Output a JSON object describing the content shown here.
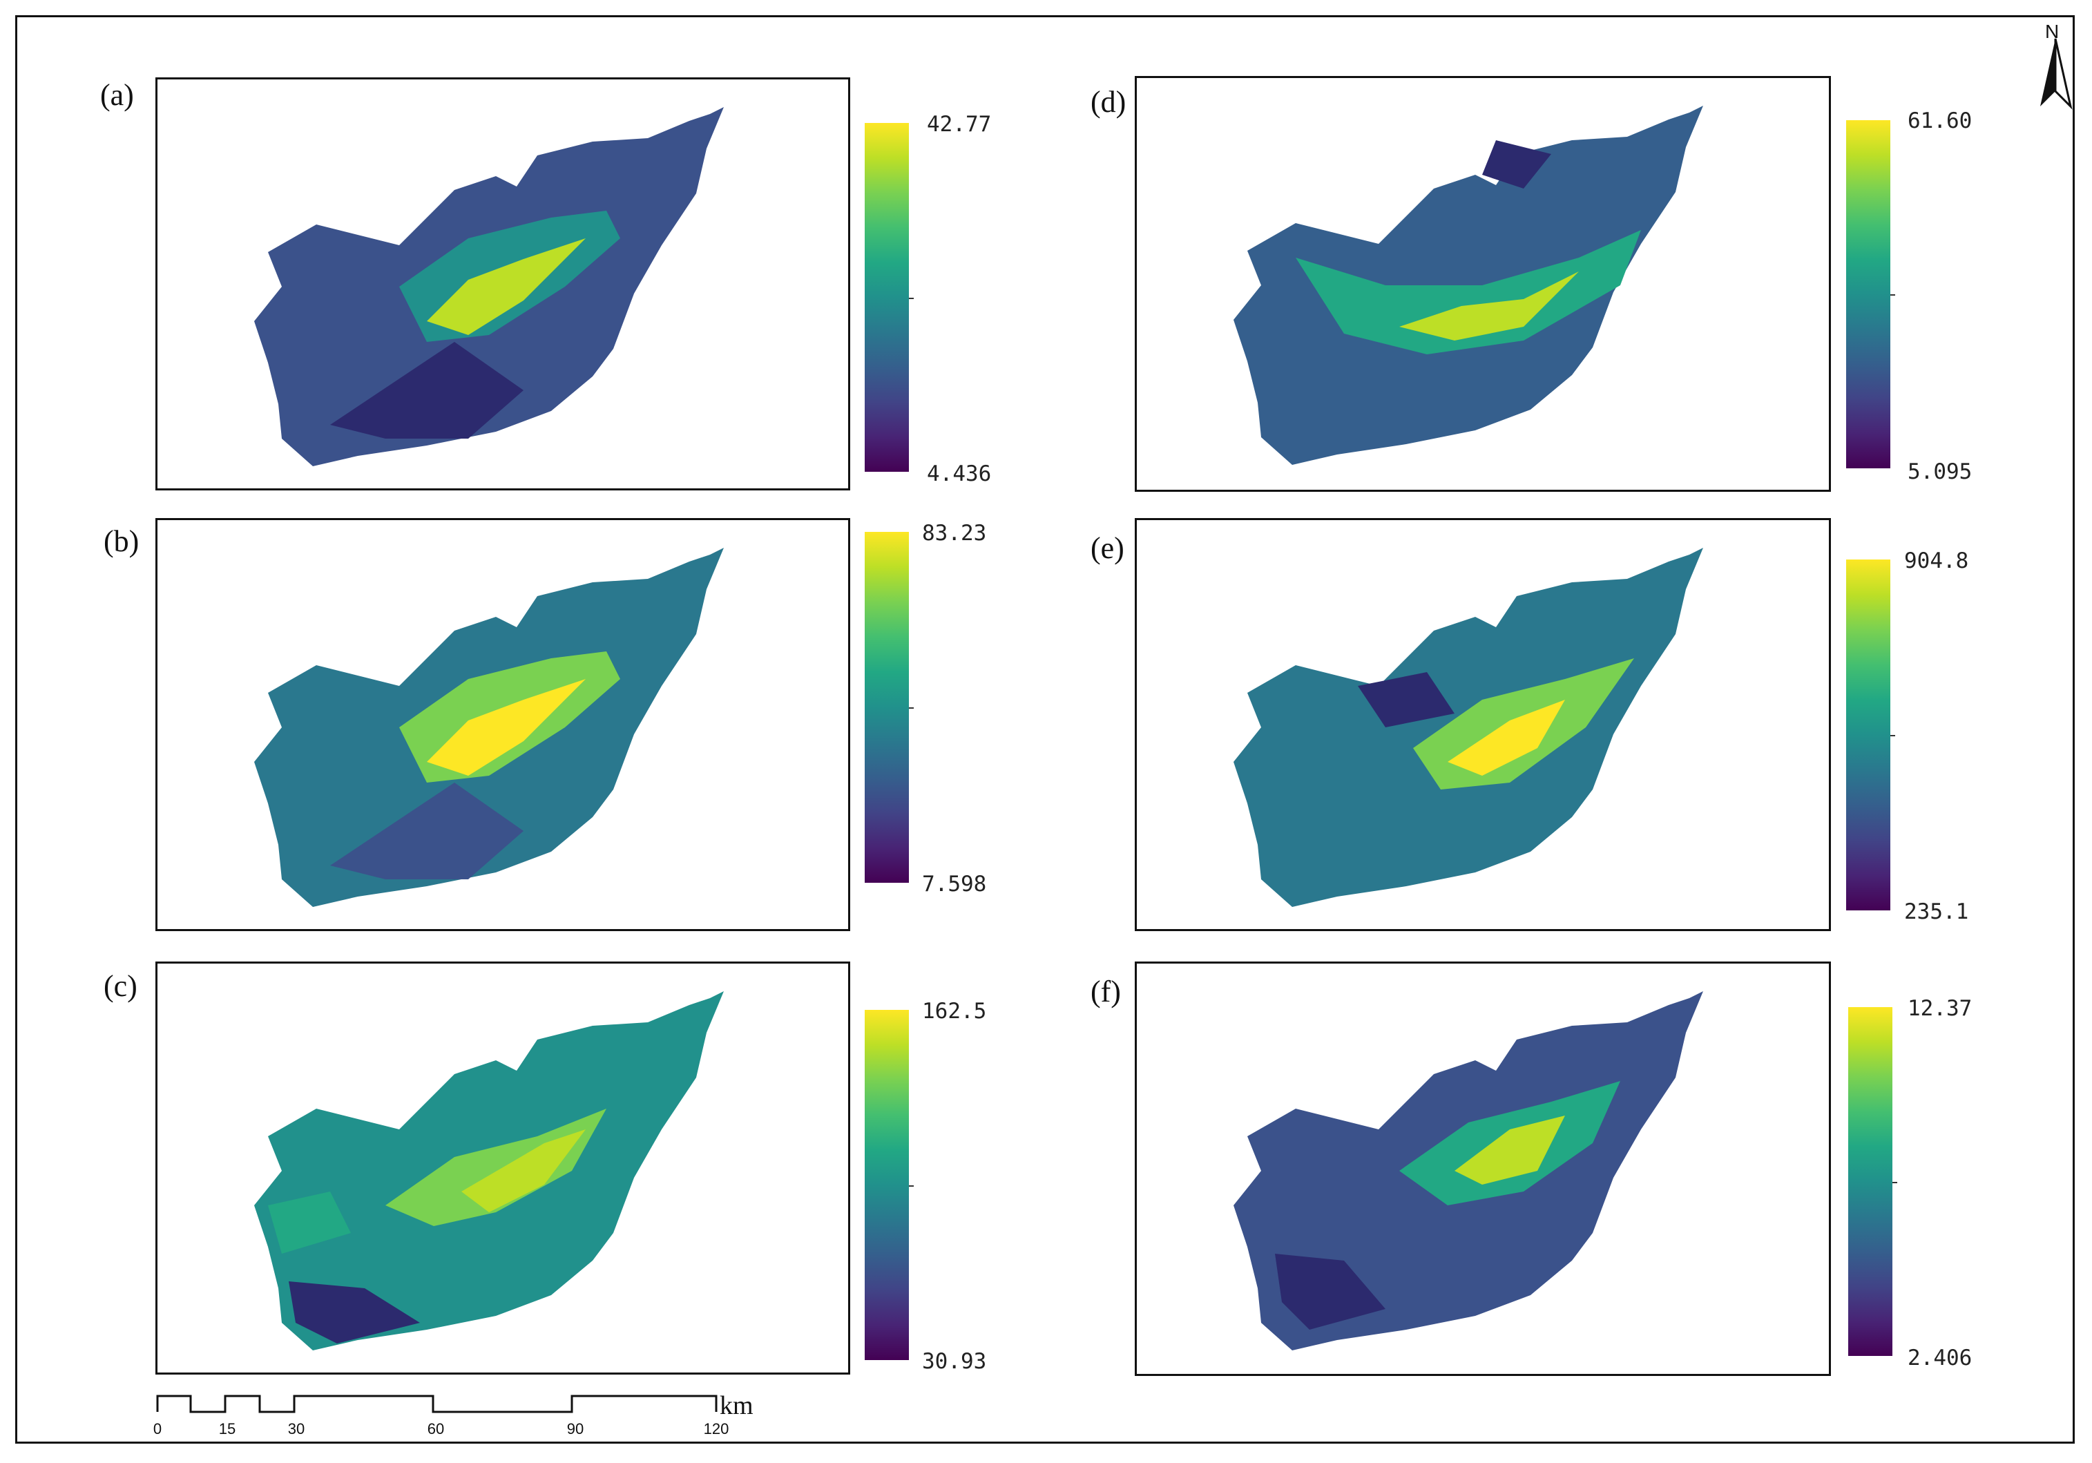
{
  "panels": [
    {
      "id": "a",
      "label": "(a)",
      "legend_max": "42.77",
      "legend_min": "4.436"
    },
    {
      "id": "b",
      "label": "(b)",
      "legend_max": "83.23",
      "legend_min": "7.598"
    },
    {
      "id": "c",
      "label": "(c)",
      "legend_max": "162.5",
      "legend_min": "30.93"
    },
    {
      "id": "d",
      "label": "(d)",
      "legend_max": "61.60",
      "legend_min": "5.095"
    },
    {
      "id": "e",
      "label": "(e)",
      "legend_max": "904.8",
      "legend_min": "235.1"
    },
    {
      "id": "f",
      "label": "(f)",
      "legend_max": "12.37",
      "legend_min": "2.406"
    }
  ],
  "colormap": [
    "#440154",
    "#482475",
    "#414487",
    "#355f8d",
    "#2a788e",
    "#21918c",
    "#22a884",
    "#44bf70",
    "#7ad151",
    "#bddf26",
    "#fde725"
  ],
  "north_arrow": {
    "label": "N"
  },
  "scale_bar": {
    "ticks": [
      "0",
      "15",
      "30",
      "60",
      "90",
      "120"
    ],
    "unit": "km"
  }
}
